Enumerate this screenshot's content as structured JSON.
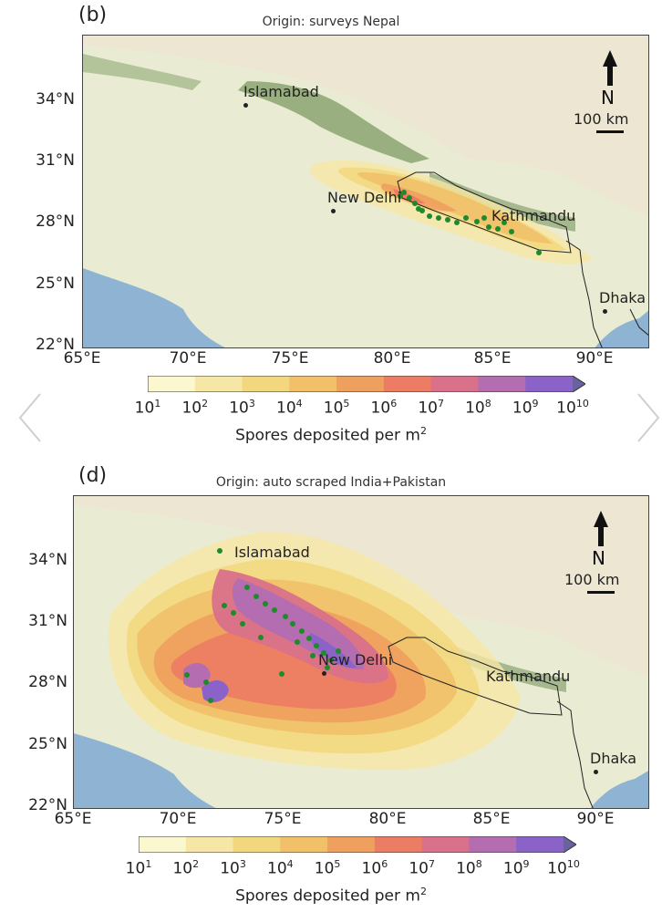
{
  "colorbar": {
    "ticks_exp": [
      "1",
      "2",
      "3",
      "4",
      "5",
      "6",
      "7",
      "8",
      "9",
      "10"
    ],
    "tick_base": "10",
    "label": "Spores deposited per m",
    "label_sup": "2",
    "colors": [
      "#fbf7cf",
      "#f6e7a6",
      "#f2d77e",
      "#f1c069",
      "#ef9f5e",
      "#ec7c64",
      "#d9718a",
      "#b36db0",
      "#8b62c8",
      "#6a62a0"
    ]
  },
  "panels": [
    {
      "label": "(b)",
      "title": "Origin: surveys Nepal",
      "lat_ticks": [
        "34°N",
        "31°N",
        "28°N",
        "25°N",
        "22°N"
      ],
      "lon_ticks": [
        "65°E",
        "70°E",
        "75°E",
        "80°E",
        "85°E",
        "90°E"
      ],
      "cities": [
        "Islamabad",
        "New Delhi",
        "Kathmandu",
        "Dhaka"
      ],
      "north": "N",
      "scale": "100 km"
    },
    {
      "label": "(d)",
      "title": "Origin: auto scraped India+Pakistan",
      "lat_ticks": [
        "34°N",
        "31°N",
        "28°N",
        "25°N",
        "22°N"
      ],
      "lon_ticks": [
        "65°E",
        "70°E",
        "75°E",
        "80°E",
        "85°E",
        "90°E"
      ],
      "cities": [
        "Islamabad",
        "New Delhi",
        "Kathmandu",
        "Dhaka"
      ],
      "north": "N",
      "scale": "100 km"
    }
  ]
}
